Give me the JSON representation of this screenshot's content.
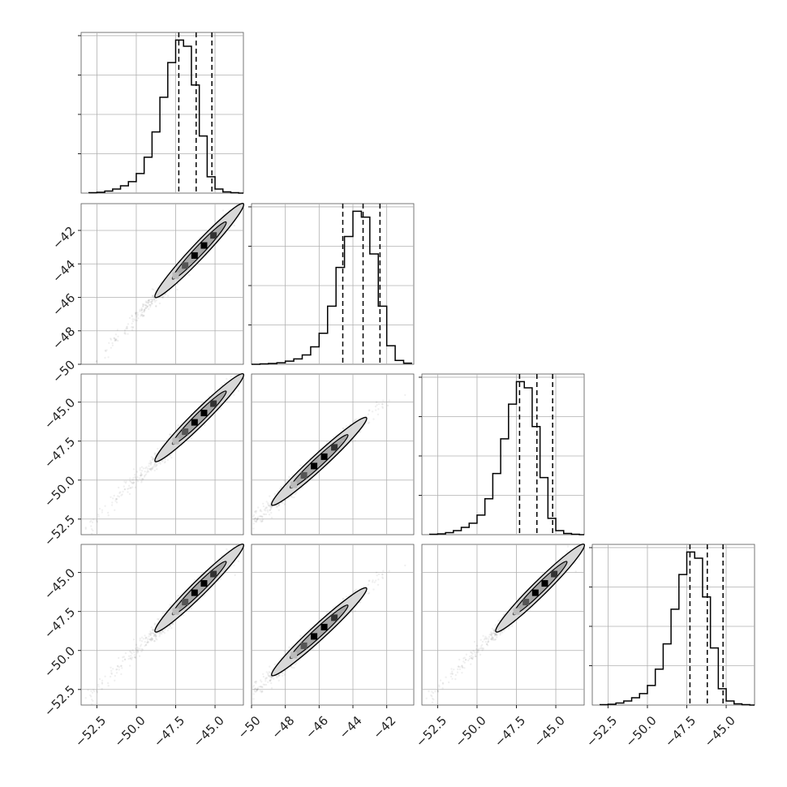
{
  "chart_data": {
    "type": "corner",
    "n_params": 4,
    "axes": [
      {
        "range": [
          -53.5,
          -43.2
        ],
        "ticks": [
          -52.5,
          -50.0,
          -47.5,
          -45.0
        ],
        "tick_labels": [
          "−52.5",
          "−50.0",
          "−47.5",
          "−45.0"
        ]
      },
      {
        "range": [
          -50.0,
          -40.4
        ],
        "ticks": [
          -50,
          -48,
          -46,
          -44,
          -42
        ],
        "tick_labels": [
          "−50",
          "−48",
          "−46",
          "−44",
          "−42"
        ]
      },
      {
        "range": [
          -53.5,
          -43.2
        ],
        "ticks": [
          -52.5,
          -50.0,
          -47.5,
          -45.0
        ],
        "tick_labels": [
          "−52.5",
          "−50.0",
          "−47.5",
          "−45.0"
        ]
      },
      {
        "range": [
          -53.5,
          -43.2
        ],
        "ticks": [
          -52.5,
          -50.0,
          -47.5,
          -45.0
        ],
        "tick_labels": [
          "−52.5",
          "−50.0",
          "−47.5",
          "−45.0"
        ]
      }
    ],
    "histograms": [
      {
        "bin_edges": [
          -53.0,
          -52.5,
          -52.0,
          -51.5,
          -51.0,
          -50.5,
          -50.0,
          -49.5,
          -49.0,
          -48.5,
          -48.0,
          -47.5,
          -47.0,
          -46.5,
          -46.0,
          -45.5,
          -45.0,
          -44.5,
          -44.0,
          -43.5,
          -43.0
        ],
        "counts": [
          1,
          2,
          5,
          10,
          18,
          28,
          48,
          88,
          150,
          235,
          320,
          375,
          360,
          265,
          140,
          40,
          10,
          3,
          1,
          0
        ],
        "quantiles": [
          -47.3,
          -46.2,
          -45.2
        ]
      },
      {
        "bin_edges": [
          -50.0,
          -49.5,
          -49.0,
          -48.5,
          -48.0,
          -47.5,
          -47.0,
          -46.5,
          -46.0,
          -45.5,
          -45.0,
          -44.5,
          -44.0,
          -43.5,
          -43.0,
          -42.5,
          -42.0,
          -41.5,
          -41.0,
          -40.5
        ],
        "counts": [
          0,
          1,
          2,
          4,
          8,
          14,
          24,
          45,
          80,
          150,
          250,
          330,
          395,
          380,
          285,
          150,
          48,
          10,
          3
        ],
        "quantiles": [
          -44.6,
          -43.4,
          -42.4
        ]
      },
      {
        "bin_edges": [
          -53.0,
          -52.5,
          -52.0,
          -51.5,
          -51.0,
          -50.5,
          -50.0,
          -49.5,
          -49.0,
          -48.5,
          -48.0,
          -47.5,
          -47.0,
          -46.5,
          -46.0,
          -45.5,
          -45.0,
          -44.5,
          -44.0,
          -43.5,
          -43.0
        ],
        "counts": [
          1,
          2,
          5,
          10,
          18,
          28,
          48,
          88,
          150,
          235,
          320,
          375,
          360,
          265,
          140,
          40,
          10,
          3,
          1,
          0
        ],
        "quantiles": [
          -47.3,
          -46.2,
          -45.2
        ]
      },
      {
        "bin_edges": [
          -53.0,
          -52.5,
          -52.0,
          -51.5,
          -51.0,
          -50.5,
          -50.0,
          -49.5,
          -49.0,
          -48.5,
          -48.0,
          -47.5,
          -47.0,
          -46.5,
          -46.0,
          -45.5,
          -45.0,
          -44.5,
          -44.0,
          -43.5,
          -43.0
        ],
        "counts": [
          1,
          2,
          5,
          10,
          18,
          28,
          48,
          88,
          150,
          235,
          320,
          375,
          360,
          265,
          140,
          40,
          10,
          3,
          1,
          0
        ],
        "quantiles": [
          -47.3,
          -46.2,
          -45.2
        ]
      }
    ],
    "pairs": [
      {
        "x_param": 0,
        "y_param": 1,
        "slope": 1.0,
        "intercept": 2.8,
        "width": 0.25
      },
      {
        "x_param": 0,
        "y_param": 2,
        "slope": 1.0,
        "intercept": 0.0,
        "width": 0.3
      },
      {
        "x_param": 1,
        "y_param": 2,
        "slope": 1.0,
        "intercept": -2.8,
        "width": 0.3
      },
      {
        "x_param": 0,
        "y_param": 3,
        "slope": 1.0,
        "intercept": 0.0,
        "width": 0.3
      },
      {
        "x_param": 1,
        "y_param": 3,
        "slope": 1.0,
        "intercept": -2.8,
        "width": 0.3
      },
      {
        "x_param": 2,
        "y_param": 3,
        "slope": 1.0,
        "intercept": 0.0,
        "width": 0.25
      }
    ],
    "grid": true
  }
}
